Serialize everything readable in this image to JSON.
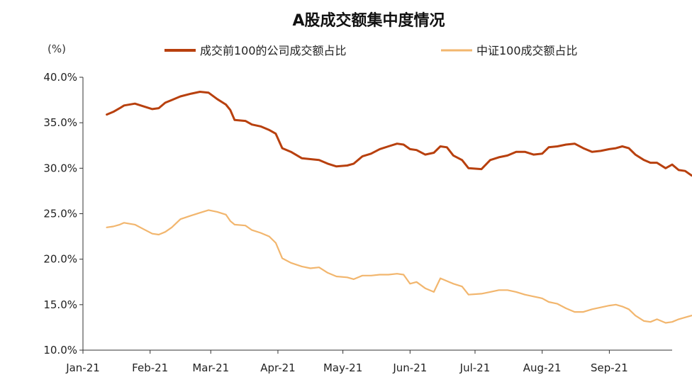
{
  "colors": {
    "series_a": "#B8400E",
    "series_b": "#F2B66E",
    "axis": "#333333"
  },
  "chart_data": {
    "type": "line",
    "title": "A股成交额集中度情况",
    "unit_label": "(%)",
    "xlabel": "",
    "ylabel": "",
    "ylim": [
      10,
      40
    ],
    "yticks": [
      10,
      15,
      20,
      25,
      30,
      35,
      40
    ],
    "ytick_labels": [
      "10.0%",
      "15.0%",
      "20.0%",
      "25.0%",
      "30.0%",
      "35.0%",
      "40.0%"
    ],
    "xlim": [
      "2021-01-01",
      "2021-09-30"
    ],
    "xticks": [
      "2021-01-01",
      "2021-02-01",
      "2021-03-01",
      "2021-04-01",
      "2021-05-01",
      "2021-06-01",
      "2021-07-01",
      "2021-08-01",
      "2021-09-01"
    ],
    "xtick_labels": [
      "Jan-21",
      "Feb-21",
      "Mar-21",
      "Apr-21",
      "May-21",
      "Jun-21",
      "Jul-21",
      "Aug-21",
      "Sep-21"
    ],
    "grid": false,
    "legend_position": "top",
    "series": [
      {
        "name": "成交前100的公司成交额占比",
        "color": "#B8400E",
        "points": [
          [
            "2021-01-12",
            35.9
          ],
          [
            "2021-01-15",
            36.2
          ],
          [
            "2021-01-18",
            36.6
          ],
          [
            "2021-01-20",
            36.9
          ],
          [
            "2021-01-25",
            37.1
          ],
          [
            "2021-01-29",
            36.8
          ],
          [
            "2021-02-02",
            36.5
          ],
          [
            "2021-02-05",
            36.6
          ],
          [
            "2021-02-08",
            37.2
          ],
          [
            "2021-02-11",
            37.5
          ],
          [
            "2021-02-15",
            37.9
          ],
          [
            "2021-02-20",
            38.2
          ],
          [
            "2021-02-24",
            38.4
          ],
          [
            "2021-02-28",
            38.3
          ],
          [
            "2021-03-04",
            37.6
          ],
          [
            "2021-03-08",
            37.0
          ],
          [
            "2021-03-10",
            36.4
          ],
          [
            "2021-03-12",
            35.3
          ],
          [
            "2021-03-17",
            35.2
          ],
          [
            "2021-03-20",
            34.8
          ],
          [
            "2021-03-24",
            34.6
          ],
          [
            "2021-03-28",
            34.2
          ],
          [
            "2021-03-31",
            33.8
          ],
          [
            "2021-04-03",
            32.2
          ],
          [
            "2021-04-07",
            31.8
          ],
          [
            "2021-04-12",
            31.1
          ],
          [
            "2021-04-16",
            31.0
          ],
          [
            "2021-04-20",
            30.9
          ],
          [
            "2021-04-24",
            30.5
          ],
          [
            "2021-04-28",
            30.2
          ],
          [
            "2021-05-03",
            30.3
          ],
          [
            "2021-05-06",
            30.5
          ],
          [
            "2021-05-10",
            31.3
          ],
          [
            "2021-05-14",
            31.6
          ],
          [
            "2021-05-18",
            32.1
          ],
          [
            "2021-05-22",
            32.4
          ],
          [
            "2021-05-26",
            32.7
          ],
          [
            "2021-05-29",
            32.6
          ],
          [
            "2021-06-01",
            32.1
          ],
          [
            "2021-06-04",
            32.0
          ],
          [
            "2021-06-08",
            31.5
          ],
          [
            "2021-06-12",
            31.7
          ],
          [
            "2021-06-15",
            32.4
          ],
          [
            "2021-06-18",
            32.3
          ],
          [
            "2021-06-21",
            31.4
          ],
          [
            "2021-06-25",
            30.9
          ],
          [
            "2021-06-28",
            30.0
          ],
          [
            "2021-07-04",
            29.9
          ],
          [
            "2021-07-08",
            30.9
          ],
          [
            "2021-07-12",
            31.2
          ],
          [
            "2021-07-16",
            31.4
          ],
          [
            "2021-07-20",
            31.8
          ],
          [
            "2021-07-24",
            31.8
          ],
          [
            "2021-07-28",
            31.5
          ],
          [
            "2021-08-01",
            31.6
          ],
          [
            "2021-08-04",
            32.3
          ],
          [
            "2021-08-08",
            32.4
          ],
          [
            "2021-08-12",
            32.6
          ],
          [
            "2021-08-16",
            32.7
          ],
          [
            "2021-08-20",
            32.2
          ],
          [
            "2021-08-24",
            31.8
          ],
          [
            "2021-08-28",
            31.9
          ],
          [
            "2021-09-01",
            32.1
          ],
          [
            "2021-09-04",
            32.2
          ],
          [
            "2021-09-07",
            32.4
          ],
          [
            "2021-09-10",
            32.2
          ],
          [
            "2021-09-13",
            31.5
          ],
          [
            "2021-09-17",
            30.9
          ],
          [
            "2021-09-20",
            30.6
          ],
          [
            "2021-09-23",
            30.6
          ],
          [
            "2021-09-27",
            30.0
          ],
          [
            "2021-09-30",
            30.4
          ],
          [
            "2021-10-03",
            29.8
          ],
          [
            "2021-10-06",
            29.7
          ],
          [
            "2021-10-09",
            29.2
          ]
        ]
      },
      {
        "name": "中证100成交额占比",
        "color": "#F2B66E",
        "points": [
          [
            "2021-01-12",
            23.5
          ],
          [
            "2021-01-15",
            23.6
          ],
          [
            "2021-01-18",
            23.8
          ],
          [
            "2021-01-20",
            24.0
          ],
          [
            "2021-01-25",
            23.8
          ],
          [
            "2021-01-29",
            23.3
          ],
          [
            "2021-02-02",
            22.8
          ],
          [
            "2021-02-05",
            22.7
          ],
          [
            "2021-02-08",
            23.0
          ],
          [
            "2021-02-11",
            23.5
          ],
          [
            "2021-02-15",
            24.4
          ],
          [
            "2021-02-20",
            24.8
          ],
          [
            "2021-02-24",
            25.1
          ],
          [
            "2021-02-28",
            25.4
          ],
          [
            "2021-03-04",
            25.2
          ],
          [
            "2021-03-08",
            24.9
          ],
          [
            "2021-03-10",
            24.2
          ],
          [
            "2021-03-12",
            23.8
          ],
          [
            "2021-03-17",
            23.7
          ],
          [
            "2021-03-20",
            23.2
          ],
          [
            "2021-03-24",
            22.9
          ],
          [
            "2021-03-28",
            22.5
          ],
          [
            "2021-03-31",
            21.8
          ],
          [
            "2021-04-03",
            20.1
          ],
          [
            "2021-04-07",
            19.6
          ],
          [
            "2021-04-12",
            19.2
          ],
          [
            "2021-04-16",
            19.0
          ],
          [
            "2021-04-20",
            19.1
          ],
          [
            "2021-04-24",
            18.5
          ],
          [
            "2021-04-28",
            18.1
          ],
          [
            "2021-05-03",
            18.0
          ],
          [
            "2021-05-06",
            17.8
          ],
          [
            "2021-05-10",
            18.2
          ],
          [
            "2021-05-14",
            18.2
          ],
          [
            "2021-05-18",
            18.3
          ],
          [
            "2021-05-22",
            18.3
          ],
          [
            "2021-05-26",
            18.4
          ],
          [
            "2021-05-29",
            18.3
          ],
          [
            "2021-06-01",
            17.3
          ],
          [
            "2021-06-04",
            17.5
          ],
          [
            "2021-06-08",
            16.8
          ],
          [
            "2021-06-12",
            16.4
          ],
          [
            "2021-06-15",
            17.9
          ],
          [
            "2021-06-18",
            17.6
          ],
          [
            "2021-06-21",
            17.3
          ],
          [
            "2021-06-25",
            17.0
          ],
          [
            "2021-06-28",
            16.1
          ],
          [
            "2021-07-04",
            16.2
          ],
          [
            "2021-07-08",
            16.4
          ],
          [
            "2021-07-12",
            16.6
          ],
          [
            "2021-07-16",
            16.6
          ],
          [
            "2021-07-20",
            16.4
          ],
          [
            "2021-07-24",
            16.1
          ],
          [
            "2021-07-28",
            15.9
          ],
          [
            "2021-08-01",
            15.7
          ],
          [
            "2021-08-04",
            15.3
          ],
          [
            "2021-08-08",
            15.1
          ],
          [
            "2021-08-12",
            14.6
          ],
          [
            "2021-08-16",
            14.2
          ],
          [
            "2021-08-20",
            14.2
          ],
          [
            "2021-08-24",
            14.5
          ],
          [
            "2021-08-28",
            14.7
          ],
          [
            "2021-09-01",
            14.9
          ],
          [
            "2021-09-04",
            15.0
          ],
          [
            "2021-09-07",
            14.8
          ],
          [
            "2021-09-10",
            14.5
          ],
          [
            "2021-09-13",
            13.8
          ],
          [
            "2021-09-17",
            13.2
          ],
          [
            "2021-09-20",
            13.1
          ],
          [
            "2021-09-23",
            13.4
          ],
          [
            "2021-09-27",
            13.0
          ],
          [
            "2021-09-30",
            13.1
          ],
          [
            "2021-10-03",
            13.4
          ],
          [
            "2021-10-06",
            13.6
          ],
          [
            "2021-10-09",
            13.8
          ]
        ]
      }
    ]
  }
}
